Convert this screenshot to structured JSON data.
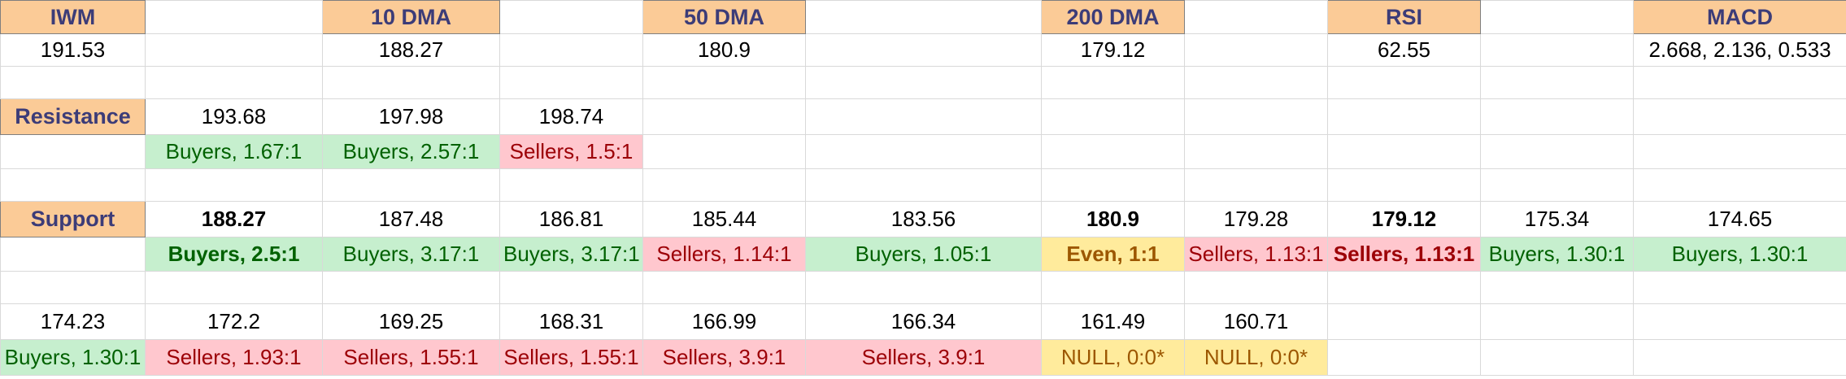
{
  "colors": {
    "header_fill": "#fbcb97",
    "header_text": "#3c3c78",
    "buyers_fill": "#c6efce",
    "buyers_text": "#006100",
    "sellers_fill": "#ffc7ce",
    "sellers_text": "#9c0006",
    "even_fill": "#ffeb9c",
    "even_text": "#9c5700"
  },
  "rows": [
    [
      {
        "text": "IWM",
        "style": "hdr"
      },
      {
        "text": ""
      },
      {
        "text": "10 DMA",
        "style": "hdr"
      },
      {
        "text": ""
      },
      {
        "text": "50 DMA",
        "style": "hdr"
      },
      {
        "text": ""
      },
      {
        "text": "200 DMA",
        "style": "hdr"
      },
      {
        "text": ""
      },
      {
        "text": "RSI",
        "style": "hdr"
      },
      {
        "text": ""
      },
      {
        "text": "MACD",
        "style": "hdr"
      }
    ],
    [
      {
        "text": "191.53"
      },
      {
        "text": ""
      },
      {
        "text": "188.27"
      },
      {
        "text": ""
      },
      {
        "text": "180.9"
      },
      {
        "text": ""
      },
      {
        "text": "179.12"
      },
      {
        "text": ""
      },
      {
        "text": "62.55"
      },
      {
        "text": ""
      },
      {
        "text": "2.668, 2.136, 0.533"
      }
    ],
    [
      {
        "text": ""
      },
      {
        "text": ""
      },
      {
        "text": ""
      },
      {
        "text": ""
      },
      {
        "text": ""
      },
      {
        "text": ""
      },
      {
        "text": ""
      },
      {
        "text": ""
      },
      {
        "text": ""
      },
      {
        "text": ""
      },
      {
        "text": ""
      }
    ],
    [
      {
        "text": "Resistance",
        "style": "hdr"
      },
      {
        "text": "193.68"
      },
      {
        "text": "197.98"
      },
      {
        "text": "198.74"
      },
      {
        "text": ""
      },
      {
        "text": ""
      },
      {
        "text": ""
      },
      {
        "text": ""
      },
      {
        "text": ""
      },
      {
        "text": ""
      },
      {
        "text": ""
      }
    ],
    [
      {
        "text": ""
      },
      {
        "text": "Buyers, 1.67:1",
        "style": "buy"
      },
      {
        "text": "Buyers, 2.57:1",
        "style": "buy"
      },
      {
        "text": "Sellers, 1.5:1",
        "style": "sell"
      },
      {
        "text": ""
      },
      {
        "text": ""
      },
      {
        "text": ""
      },
      {
        "text": ""
      },
      {
        "text": ""
      },
      {
        "text": ""
      },
      {
        "text": ""
      }
    ],
    [
      {
        "text": ""
      },
      {
        "text": ""
      },
      {
        "text": ""
      },
      {
        "text": ""
      },
      {
        "text": ""
      },
      {
        "text": ""
      },
      {
        "text": ""
      },
      {
        "text": ""
      },
      {
        "text": ""
      },
      {
        "text": ""
      },
      {
        "text": ""
      }
    ],
    [
      {
        "text": "Support",
        "style": "hdr"
      },
      {
        "text": "188.27",
        "style": "bold"
      },
      {
        "text": "187.48"
      },
      {
        "text": "186.81"
      },
      {
        "text": "185.44"
      },
      {
        "text": "183.56"
      },
      {
        "text": "180.9",
        "style": "bold"
      },
      {
        "text": "179.28"
      },
      {
        "text": "179.12",
        "style": "bold"
      },
      {
        "text": "175.34"
      },
      {
        "text": "174.65"
      }
    ],
    [
      {
        "text": ""
      },
      {
        "text": "Buyers, 2.5:1",
        "style": "buy bold"
      },
      {
        "text": "Buyers, 3.17:1",
        "style": "buy"
      },
      {
        "text": "Buyers, 3.17:1",
        "style": "buy"
      },
      {
        "text": "Sellers, 1.14:1",
        "style": "sell"
      },
      {
        "text": "Buyers, 1.05:1",
        "style": "buy"
      },
      {
        "text": "Even, 1:1",
        "style": "even bold"
      },
      {
        "text": "Sellers, 1.13:1",
        "style": "sell"
      },
      {
        "text": "Sellers, 1.13:1",
        "style": "sell bold"
      },
      {
        "text": "Buyers, 1.30:1",
        "style": "buy"
      },
      {
        "text": "Buyers, 1.30:1",
        "style": "buy"
      }
    ],
    [
      {
        "text": ""
      },
      {
        "text": ""
      },
      {
        "text": ""
      },
      {
        "text": ""
      },
      {
        "text": ""
      },
      {
        "text": ""
      },
      {
        "text": ""
      },
      {
        "text": ""
      },
      {
        "text": ""
      },
      {
        "text": ""
      },
      {
        "text": ""
      }
    ],
    [
      {
        "text": "174.23"
      },
      {
        "text": "172.2"
      },
      {
        "text": "169.25"
      },
      {
        "text": "168.31"
      },
      {
        "text": "166.99"
      },
      {
        "text": "166.34"
      },
      {
        "text": "161.49"
      },
      {
        "text": "160.71"
      },
      {
        "text": ""
      },
      {
        "text": ""
      },
      {
        "text": ""
      }
    ],
    [
      {
        "text": "Buyers, 1.30:1",
        "style": "buy"
      },
      {
        "text": "Sellers, 1.93:1",
        "style": "sell"
      },
      {
        "text": "Sellers, 1.55:1",
        "style": "sell"
      },
      {
        "text": "Sellers, 1.55:1",
        "style": "sell"
      },
      {
        "text": "Sellers, 3.9:1",
        "style": "sell"
      },
      {
        "text": "Sellers, 3.9:1",
        "style": "sell"
      },
      {
        "text": "NULL, 0:0*",
        "style": "even"
      },
      {
        "text": "NULL, 0:0*",
        "style": "even"
      },
      {
        "text": ""
      },
      {
        "text": ""
      },
      {
        "text": ""
      }
    ]
  ]
}
